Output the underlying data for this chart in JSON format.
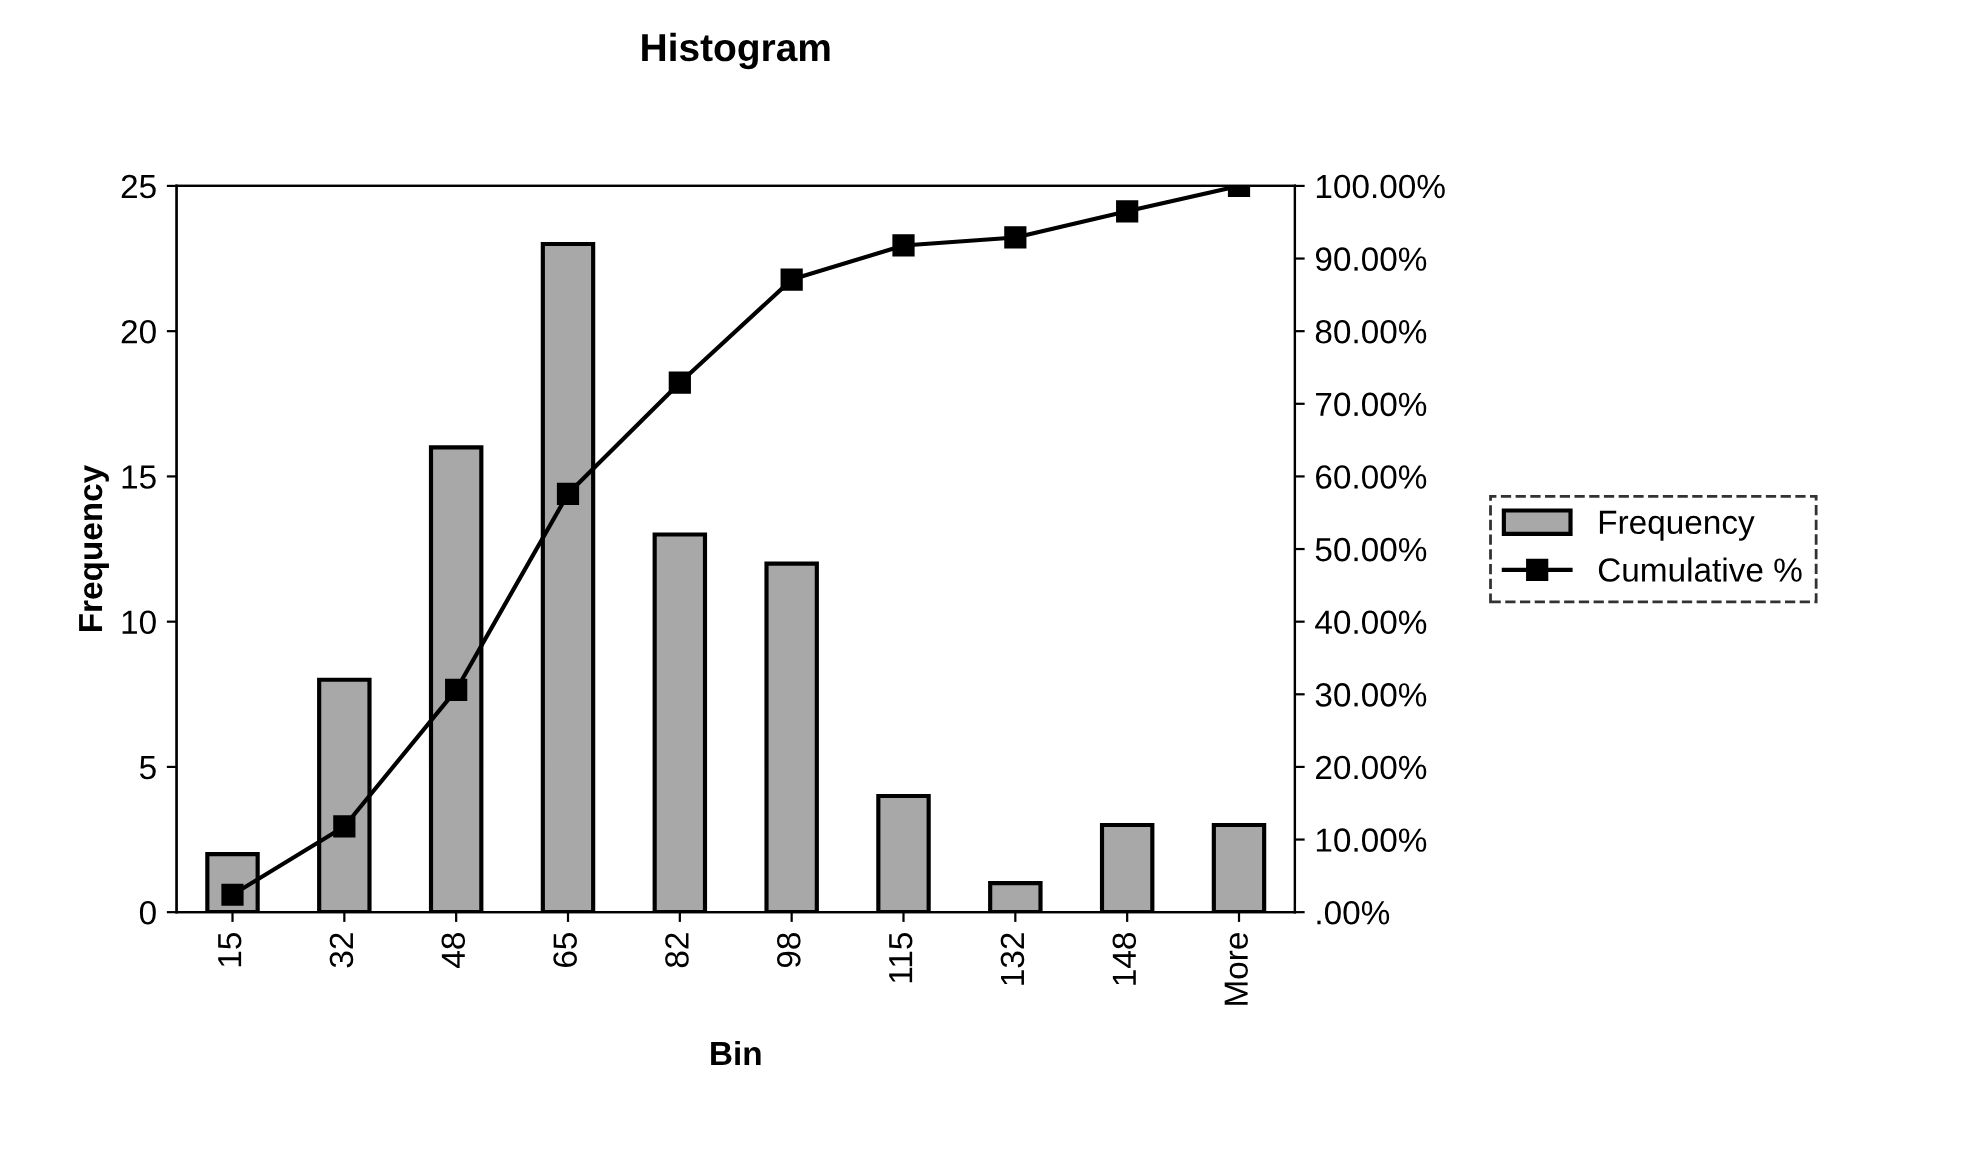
{
  "chart_data": {
    "type": "bar",
    "title": "Histogram",
    "xlabel": "Bin",
    "ylabel": "Frequency",
    "categories": [
      "15",
      "32",
      "48",
      "65",
      "82",
      "98",
      "115",
      "132",
      "148",
      "More"
    ],
    "series": [
      {
        "name": "Frequency",
        "color": "#a8a8a8",
        "values": [
          2,
          8,
          16,
          23,
          13,
          12,
          4,
          1,
          3,
          3
        ]
      },
      {
        "name": "Cumulative %",
        "type": "line",
        "axis": "y2",
        "color": "#000000",
        "values": [
          2.4,
          11.8,
          30.6,
          57.6,
          72.9,
          87.1,
          91.8,
          92.9,
          96.5,
          100
        ]
      }
    ],
    "ylim": [
      0,
      25
    ],
    "yticks": [
      0,
      5,
      10,
      15,
      20,
      25
    ],
    "y2lim": [
      0,
      100
    ],
    "y2ticks": [
      {
        "value": 0,
        "label": ".00%"
      },
      {
        "value": 10,
        "label": "10.00%"
      },
      {
        "value": 20,
        "label": "20.00%"
      },
      {
        "value": 30,
        "label": "30.00%"
      },
      {
        "value": 40,
        "label": "40.00%"
      },
      {
        "value": 50,
        "label": "50.00%"
      },
      {
        "value": 60,
        "label": "60.00%"
      },
      {
        "value": 70,
        "label": "70.00%"
      },
      {
        "value": 80,
        "label": "80.00%"
      },
      {
        "value": 90,
        "label": "90.00%"
      },
      {
        "value": 100,
        "label": "100.00%"
      }
    ],
    "marker": "square",
    "line_style": "solid",
    "grid": false,
    "legend": "right"
  }
}
